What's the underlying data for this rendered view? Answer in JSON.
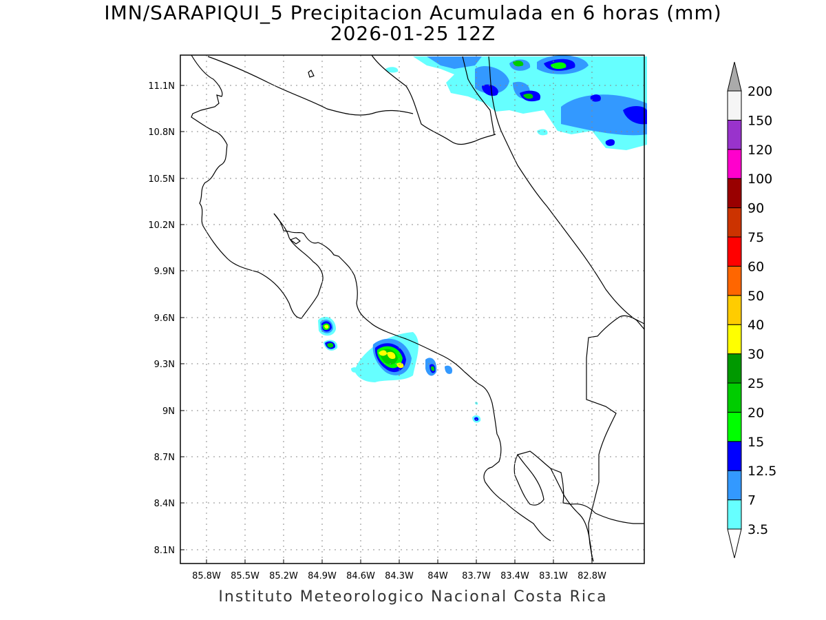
{
  "header": {
    "title": "IMN/SARAPIQUI_5 Precipitacion Acumulada en 6 horas (mm)",
    "subtitle": "2026-01-25 12Z"
  },
  "footer": {
    "credit": "Instituto Meteorologico Nacional Costa Rica"
  },
  "map": {
    "lon_labels": [
      "85.8W",
      "85.5W",
      "85.2W",
      "84.9W",
      "84.6W",
      "84.3W",
      "84W",
      "83.7W",
      "83.4W",
      "83.1W",
      "82.8W"
    ],
    "lat_labels": [
      "11.1N",
      "10.8N",
      "10.5N",
      "10.2N",
      "9.9N",
      "9.6N",
      "9.3N",
      "9N",
      "8.7N",
      "8.4N",
      "8.1N"
    ]
  },
  "legend": {
    "levels": [
      "3.5",
      "7",
      "12.5",
      "15",
      "20",
      "25",
      "30",
      "40",
      "50",
      "60",
      "75",
      "90",
      "100",
      "120",
      "150",
      "200"
    ],
    "colors": [
      "#66ffff",
      "#3399ff",
      "#0000ff",
      "#00ff00",
      "#00cc00",
      "#009900",
      "#ffff00",
      "#ffcc00",
      "#ff6600",
      "#ff0000",
      "#cc3300",
      "#990000",
      "#ff00cc",
      "#9933cc",
      "#f5f5f5",
      "#aaaaaa"
    ]
  }
}
